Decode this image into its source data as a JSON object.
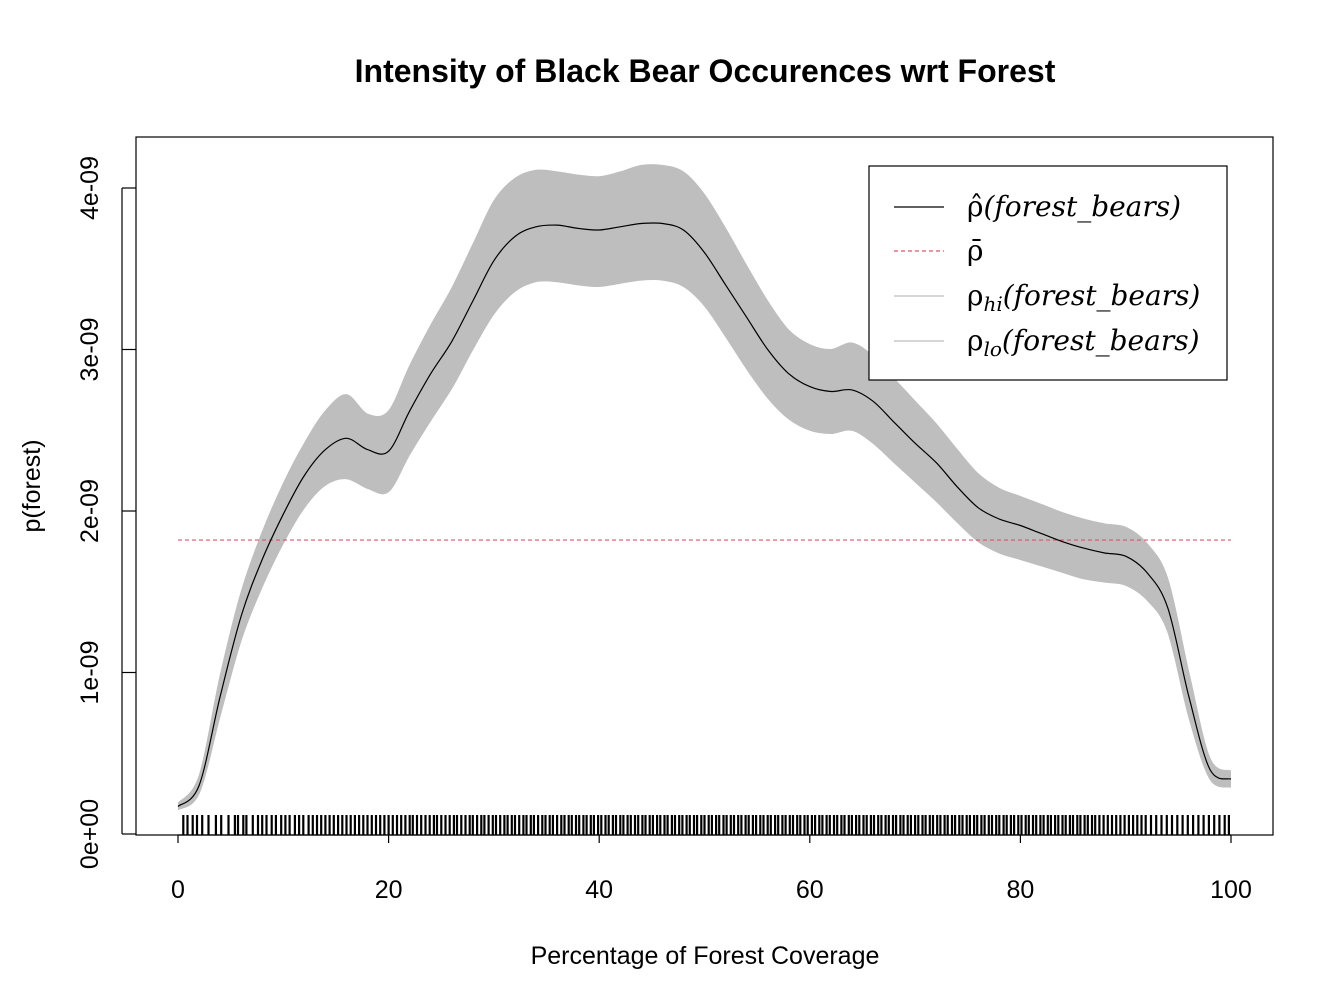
{
  "chart_data": {
    "type": "line",
    "title": "Intensity of Black Bear Occurences wrt Forest",
    "xlabel": "Percentage of Forest Coverage",
    "ylabel": "p(forest)",
    "xlim": [
      0,
      100
    ],
    "ylim": [
      0,
      4.2e-09
    ],
    "x_ticks": [
      0,
      20,
      40,
      60,
      80,
      100
    ],
    "x_tick_labels": [
      "0",
      "20",
      "40",
      "60",
      "80",
      "100"
    ],
    "y_ticks": [
      0,
      1e-09,
      2e-09,
      3e-09,
      4e-09
    ],
    "y_tick_labels": [
      "0e+00",
      "1e-09",
      "2e-09",
      "3e-09",
      "4e-09"
    ],
    "legend_position": "top-right",
    "colors": {
      "estimate": "#000000",
      "average": "#DF536B",
      "band": "#BEBEBE"
    },
    "rho_bar": 1.82e-09,
    "series": [
      {
        "name": "ρ̂(forest_bears)",
        "x": [
          0,
          2,
          4,
          6,
          8,
          10,
          12,
          14,
          16,
          18,
          20,
          22,
          24,
          26,
          28,
          30,
          32,
          34,
          36,
          38,
          40,
          42,
          44,
          46,
          48,
          50,
          52,
          54,
          56,
          58,
          60,
          62,
          64,
          66,
          68,
          70,
          72,
          74,
          76,
          78,
          80,
          82,
          84,
          86,
          88,
          90,
          92,
          94,
          96,
          98,
          100
        ],
        "y": [
          1.7e-10,
          3e-10,
          8.5e-10,
          1.35e-09,
          1.7e-09,
          1.98e-09,
          2.22e-09,
          2.38e-09,
          2.45e-09,
          2.38e-09,
          2.37e-09,
          2.62e-09,
          2.85e-09,
          3.05e-09,
          3.3e-09,
          3.55e-09,
          3.7e-09,
          3.76e-09,
          3.77e-09,
          3.75e-09,
          3.74e-09,
          3.76e-09,
          3.78e-09,
          3.78e-09,
          3.74e-09,
          3.6e-09,
          3.4e-09,
          3.2e-09,
          3e-09,
          2.85e-09,
          2.77e-09,
          2.74e-09,
          2.75e-09,
          2.68e-09,
          2.55e-09,
          2.42e-09,
          2.3e-09,
          2.15e-09,
          2.02e-09,
          1.95e-09,
          1.91e-09,
          1.86e-09,
          1.81e-09,
          1.77e-09,
          1.74e-09,
          1.72e-09,
          1.62e-09,
          1.4e-09,
          8.5e-10,
          4e-10,
          3.4e-10
        ]
      },
      {
        "name": "ρ̄",
        "x": [
          0,
          100
        ],
        "y": [
          1.82e-09,
          1.82e-09
        ]
      },
      {
        "name": "ρhi(forest_bears)",
        "x": [
          0,
          2,
          4,
          6,
          8,
          10,
          12,
          14,
          16,
          18,
          20,
          22,
          24,
          26,
          28,
          30,
          32,
          34,
          36,
          38,
          40,
          42,
          44,
          46,
          48,
          50,
          52,
          54,
          56,
          58,
          60,
          62,
          64,
          66,
          68,
          70,
          72,
          74,
          76,
          78,
          80,
          82,
          84,
          86,
          88,
          90,
          92,
          94,
          96,
          98,
          100
        ],
        "y": [
          1.9e-10,
          3.6e-10,
          9.8e-10,
          1.5e-09,
          1.87e-09,
          2.17e-09,
          2.42e-09,
          2.62e-09,
          2.72e-09,
          2.6e-09,
          2.62e-09,
          2.9e-09,
          3.15e-09,
          3.38e-09,
          3.65e-09,
          3.92e-09,
          4.06e-09,
          4.11e-09,
          4.1e-09,
          4.08e-09,
          4.07e-09,
          4.1e-09,
          4.14e-09,
          4.14e-09,
          4.1e-09,
          3.96e-09,
          3.75e-09,
          3.52e-09,
          3.3e-09,
          3.12e-09,
          3.03e-09,
          3e-09,
          3.04e-09,
          2.96e-09,
          2.82e-09,
          2.68e-09,
          2.54e-09,
          2.38e-09,
          2.23e-09,
          2.14e-09,
          2.09e-09,
          2.04e-09,
          1.99e-09,
          1.95e-09,
          1.92e-09,
          1.9e-09,
          1.8e-09,
          1.58e-09,
          1e-09,
          4.7e-10,
          3.9e-10
        ]
      },
      {
        "name": "ρlo(forest_bears)",
        "x": [
          0,
          2,
          4,
          6,
          8,
          10,
          12,
          14,
          16,
          18,
          20,
          22,
          24,
          26,
          28,
          30,
          32,
          34,
          36,
          38,
          40,
          42,
          44,
          46,
          48,
          50,
          52,
          54,
          56,
          58,
          60,
          62,
          64,
          66,
          68,
          70,
          72,
          74,
          76,
          78,
          80,
          82,
          84,
          86,
          88,
          90,
          92,
          94,
          96,
          98,
          100
        ],
        "y": [
          1.5e-10,
          2.5e-10,
          7.3e-10,
          1.2e-09,
          1.53e-09,
          1.8e-09,
          2.02e-09,
          2.16e-09,
          2.2e-09,
          2.14e-09,
          2.12e-09,
          2.35e-09,
          2.56e-09,
          2.76e-09,
          3e-09,
          3.22e-09,
          3.36e-09,
          3.42e-09,
          3.42e-09,
          3.4e-09,
          3.39e-09,
          3.41e-09,
          3.43e-09,
          3.43e-09,
          3.39e-09,
          3.27e-09,
          3.08e-09,
          2.88e-09,
          2.7e-09,
          2.57e-09,
          2.5e-09,
          2.48e-09,
          2.5e-09,
          2.42e-09,
          2.3e-09,
          2.18e-09,
          2.06e-09,
          1.93e-09,
          1.81e-09,
          1.74e-09,
          1.7e-09,
          1.66e-09,
          1.62e-09,
          1.58e-09,
          1.56e-09,
          1.54e-09,
          1.45e-09,
          1.25e-09,
          7.2e-10,
          3.4e-10,
          2.9e-10
        ]
      }
    ],
    "rug": [
      0.5,
      0.9,
      1.4,
      1.8,
      2.3,
      2.9,
      3.6,
      4.1,
      4.8,
      5.4,
      5.7,
      6.2,
      6.5,
      7.1,
      7.6,
      8.0,
      8.4,
      8.9,
      9.3,
      9.8,
      10.2,
      10.6,
      11.1,
      11.5,
      11.9,
      12.4,
      12.8,
      13.2,
      13.6,
      14.0,
      14.4,
      14.8,
      15.2,
      15.6,
      16.0,
      16.4,
      16.8,
      17.2,
      17.6,
      18.0,
      18.4,
      18.8,
      19.2,
      19.6,
      20.0,
      20.4,
      20.8,
      21.2,
      21.6,
      22.0,
      22.3,
      22.7,
      23.1,
      23.5,
      23.9,
      24.3,
      24.6,
      25.0,
      25.4,
      25.8,
      26.2,
      26.5,
      26.9,
      27.3,
      27.7,
      28.0,
      28.4,
      28.8,
      29.1,
      29.5,
      29.9,
      30.2,
      30.6,
      31.0,
      31.3,
      31.7,
      32.0,
      32.4,
      32.8,
      33.1,
      33.5,
      33.8,
      34.2,
      34.6,
      34.9,
      35.3,
      35.6,
      36.0,
      36.4,
      36.7,
      37.1,
      37.4,
      37.8,
      38.1,
      38.5,
      38.8,
      39.2,
      39.5,
      39.9,
      40.2,
      40.6,
      40.9,
      41.3,
      41.6,
      42.0,
      42.3,
      42.7,
      43.0,
      43.4,
      43.7,
      44.1,
      44.4,
      44.8,
      45.1,
      45.5,
      45.8,
      46.2,
      46.5,
      46.9,
      47.2,
      47.6,
      47.9,
      48.3,
      48.6,
      49.0,
      49.3,
      49.7,
      50.0,
      50.4,
      50.7,
      51.1,
      51.4,
      51.8,
      52.1,
      52.5,
      52.8,
      53.2,
      53.5,
      53.9,
      54.2,
      54.6,
      54.9,
      55.3,
      55.6,
      56.0,
      56.3,
      56.7,
      57.0,
      57.4,
      57.7,
      58.1,
      58.4,
      58.8,
      59.1,
      59.5,
      59.8,
      60.2,
      60.5,
      60.9,
      61.2,
      61.6,
      61.9,
      62.3,
      62.6,
      63.0,
      63.3,
      63.7,
      64.0,
      64.4,
      64.7,
      65.1,
      65.4,
      65.8,
      66.1,
      66.5,
      66.8,
      67.2,
      67.5,
      67.9,
      68.2,
      68.6,
      68.9,
      69.3,
      69.6,
      70.0,
      70.3,
      70.7,
      71.0,
      71.4,
      71.7,
      72.1,
      72.4,
      72.8,
      73.1,
      73.5,
      73.8,
      74.2,
      74.5,
      74.9,
      75.2,
      75.6,
      75.9,
      76.3,
      76.6,
      77.0,
      77.3,
      77.7,
      78.0,
      78.4,
      78.7,
      79.1,
      79.4,
      79.8,
      80.1,
      80.5,
      80.8,
      81.2,
      81.5,
      81.9,
      82.2,
      82.6,
      82.9,
      83.3,
      83.6,
      84.0,
      84.3,
      84.7,
      85.0,
      85.4,
      85.7,
      86.1,
      86.4,
      86.8,
      87.1,
      87.5,
      87.9,
      88.3,
      88.7,
      89.1,
      89.5,
      89.9,
      90.3,
      90.7,
      91.1,
      91.5,
      91.9,
      92.4,
      92.9,
      93.4,
      93.9,
      94.4,
      94.9,
      95.4,
      95.9,
      96.4,
      96.9,
      97.4,
      97.9,
      98.4,
      98.9,
      99.4,
      99.8
    ]
  }
}
